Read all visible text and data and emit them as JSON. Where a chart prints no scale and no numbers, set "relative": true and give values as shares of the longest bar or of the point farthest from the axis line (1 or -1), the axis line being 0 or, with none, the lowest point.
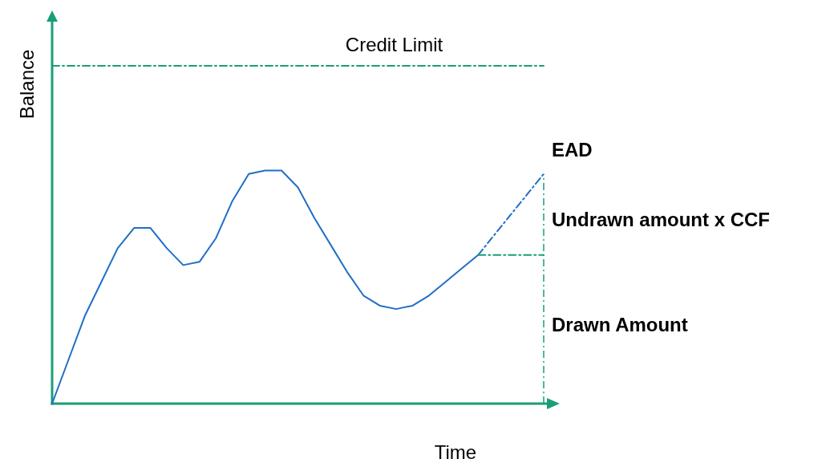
{
  "chart_data": {
    "type": "line",
    "relative": true,
    "xlabel": "Time",
    "ylabel": "Balance",
    "categories": [
      null,
      null,
      null,
      null,
      null,
      null,
      null,
      null,
      null,
      null,
      null,
      null,
      null,
      null,
      null,
      null,
      null,
      null,
      null,
      null,
      null,
      null,
      null,
      null,
      null,
      null,
      null,
      null,
      null,
      null,
      null
    ],
    "series": [
      {
        "color": "#1f6fc5",
        "line_style": "solid",
        "values": [
          0,
          0.13,
          0.26,
          0.36,
          0.46,
          0.52,
          0.52,
          0.46,
          0.41,
          0.42,
          0.49,
          0.6,
          0.68,
          0.69,
          0.69,
          0.64,
          0.55,
          0.47,
          0.39,
          0.32,
          0.29,
          0.28,
          0.29,
          0.32,
          0.36,
          0.4,
          0.44,
          null,
          null,
          null,
          null
        ]
      },
      {
        "color": "#1f6fc5",
        "line_style": "dashed",
        "values": [
          null,
          null,
          null,
          null,
          null,
          null,
          null,
          null,
          null,
          null,
          null,
          null,
          null,
          null,
          null,
          null,
          null,
          null,
          null,
          null,
          null,
          null,
          null,
          null,
          null,
          null,
          0.44,
          0.5,
          0.56,
          0.62,
          0.68
        ]
      },
      {
        "color": "#1a9e77",
        "line_style": "dashed",
        "values": [
          null,
          null,
          null,
          null,
          null,
          null,
          null,
          null,
          null,
          null,
          null,
          null,
          null,
          null,
          null,
          null,
          null,
          null,
          null,
          null,
          null,
          null,
          null,
          null,
          null,
          null,
          0.44,
          0.44,
          0.44,
          0.44,
          0.44
        ]
      },
      {
        "name": "Credit Limit",
        "color": "#1a9e77",
        "line_style": "dashed",
        "values": [
          1,
          1,
          1,
          1,
          1,
          1,
          1,
          1,
          1,
          1,
          1,
          1,
          1,
          1,
          1,
          1,
          1,
          1,
          1,
          1,
          1,
          1,
          1,
          1,
          1,
          1,
          1,
          1,
          1,
          1,
          1
        ]
      }
    ],
    "annotations": [
      "EAD",
      "Undrawn amount x CCF",
      "Drawn Amount"
    ]
  }
}
